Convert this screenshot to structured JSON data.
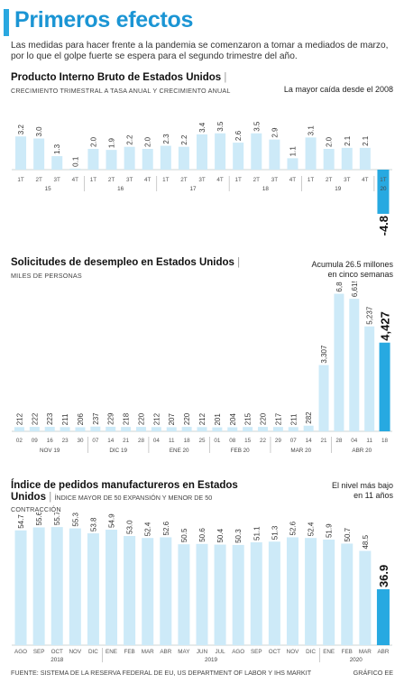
{
  "header": {
    "title": "Primeros efectos",
    "intro": "Las medidas para hacer frente a la pandemia se comenzaron a tomar a mediados de marzo, por lo que el golpe fuerte se espera para el segundo trimestre del año."
  },
  "colors": {
    "bar": "#cdeaf8",
    "highlight": "#27a9e1",
    "title": "#1b95d4"
  },
  "sections": [
    {
      "title": "Producto Interno Bruto de Estados Unidos",
      "subtitle": "CRECIMIENTO TRIMESTRAL A TASA ANUAL Y CRECIMIENTO ANUAL",
      "note": "La mayor caída desde el 2008"
    },
    {
      "title": "Solicitudes de desempleo en Estados Unidos",
      "subtitle": "MILES DE PERSONAS",
      "note_line1": "Acumula 26.5 millones",
      "note_line2": "en cinco semanas"
    },
    {
      "title_line1": "Índice de pedidos manufactureros en Estados",
      "title_line2": "Unidos",
      "subtitle_inline": "ÍNDICE MAYOR DE 50 EXPANSIÓN Y MENOR DE 50",
      "subtitle_line2": "CONTRACCIÓN",
      "note_line1": "El nivel más bajo",
      "note_line2": "en 11 años"
    }
  ],
  "chart_data": [
    {
      "type": "bar",
      "title": "Producto Interno Bruto de Estados Unidos",
      "categories": [
        "1T",
        "2T",
        "3T",
        "4T",
        "1T",
        "2T",
        "3T",
        "4T",
        "1T",
        "2T",
        "3T",
        "4T",
        "1T",
        "2T",
        "3T",
        "4T",
        "1T",
        "2T",
        "3T",
        "4T",
        "1T"
      ],
      "values": [
        3.2,
        3.0,
        1.3,
        0.1,
        2.0,
        1.9,
        2.2,
        2.0,
        2.3,
        2.2,
        3.4,
        3.5,
        2.6,
        3.5,
        2.9,
        1.1,
        3.1,
        2.0,
        2.1,
        2.1,
        -4.8
      ],
      "labels": [
        "3.2",
        "3.0",
        "1.3",
        "0.1",
        "2.0",
        "1.9",
        "2.2",
        "2.0",
        "2.3",
        "2.2",
        "3.4",
        "3.5",
        "2.6",
        "3.5",
        "2.9",
        "1.1",
        "3.1",
        "2.0",
        "2.1",
        "2.1",
        "-4.8"
      ],
      "groups": [
        {
          "label": "15",
          "start": 0,
          "end": 3
        },
        {
          "label": "16",
          "start": 4,
          "end": 7
        },
        {
          "label": "17",
          "start": 8,
          "end": 11
        },
        {
          "label": "18",
          "start": 12,
          "end": 15
        },
        {
          "label": "19",
          "start": 16,
          "end": 19
        },
        {
          "label": "20",
          "start": 20,
          "end": 20
        }
      ],
      "highlight_index": 20
    },
    {
      "type": "bar",
      "title": "Solicitudes de desempleo en Estados Unidos",
      "categories": [
        "02",
        "09",
        "16",
        "23",
        "30",
        "07",
        "14",
        "21",
        "28",
        "04",
        "11",
        "18",
        "25",
        "01",
        "08",
        "15",
        "22",
        "29",
        "07",
        "14",
        "21",
        "28",
        "04",
        "11",
        "18"
      ],
      "values": [
        212,
        222,
        223,
        211,
        206,
        237,
        229,
        218,
        220,
        212,
        207,
        220,
        212,
        201,
        204,
        215,
        220,
        217,
        211,
        282,
        3307,
        6867,
        6615,
        5237,
        4427
      ],
      "labels": [
        "212",
        "222",
        "223",
        "211",
        "206",
        "237",
        "229",
        "218",
        "220",
        "212",
        "207",
        "220",
        "212",
        "201",
        "204",
        "215",
        "220",
        "217",
        "211",
        "282",
        "3,307",
        "6,867",
        "6,615",
        "5,237",
        "4,427"
      ],
      "groups": [
        {
          "label": "NOV 19",
          "start": 0,
          "end": 4
        },
        {
          "label": "DIC 19",
          "start": 5,
          "end": 8
        },
        {
          "label": "ENE 20",
          "start": 9,
          "end": 12
        },
        {
          "label": "FEB 20",
          "start": 13,
          "end": 16
        },
        {
          "label": "MAR 20",
          "start": 17,
          "end": 20
        },
        {
          "label": "ABR 20",
          "start": 21,
          "end": 24
        }
      ],
      "highlight_index": 24
    },
    {
      "type": "bar",
      "title": "Índice de pedidos manufactureros en Estados Unidos",
      "categories": [
        "AGO",
        "SEP",
        "OCT",
        "NOV",
        "DIC",
        "ENE",
        "FEB",
        "MAR",
        "ABR",
        "MAY",
        "JUN",
        "JUL",
        "AGO",
        "SEP",
        "OCT",
        "NOV",
        "DIC",
        "ENE",
        "FEB",
        "MAR",
        "ABR"
      ],
      "values": [
        54.7,
        55.6,
        55.7,
        55.3,
        53.8,
        54.9,
        53.0,
        52.4,
        52.6,
        50.5,
        50.6,
        50.4,
        50.3,
        51.1,
        51.3,
        52.6,
        52.4,
        51.9,
        50.7,
        48.5,
        36.9
      ],
      "labels": [
        "54.7",
        "55.6",
        "55.7",
        "55.3",
        "53.8",
        "54.9",
        "53.0",
        "52.4",
        "52.6",
        "50.5",
        "50.6",
        "50.4",
        "50.3",
        "51.1",
        "51.3",
        "52.6",
        "52.4",
        "51.9",
        "50.7",
        "48.5",
        "36.9"
      ],
      "groups": [
        {
          "label": "2018",
          "start": 0,
          "end": 4
        },
        {
          "label": "2019",
          "start": 5,
          "end": 16
        },
        {
          "label": "2020",
          "start": 17,
          "end": 20
        }
      ],
      "highlight_index": 20
    }
  ],
  "footer": {
    "source": "FUENTE: SISTEMA DE LA RESERVA FEDERAL DE EU, US DEPARTMENT OF LABOR Y IHS MARKIT",
    "credit": "GRÁFICO EE"
  }
}
